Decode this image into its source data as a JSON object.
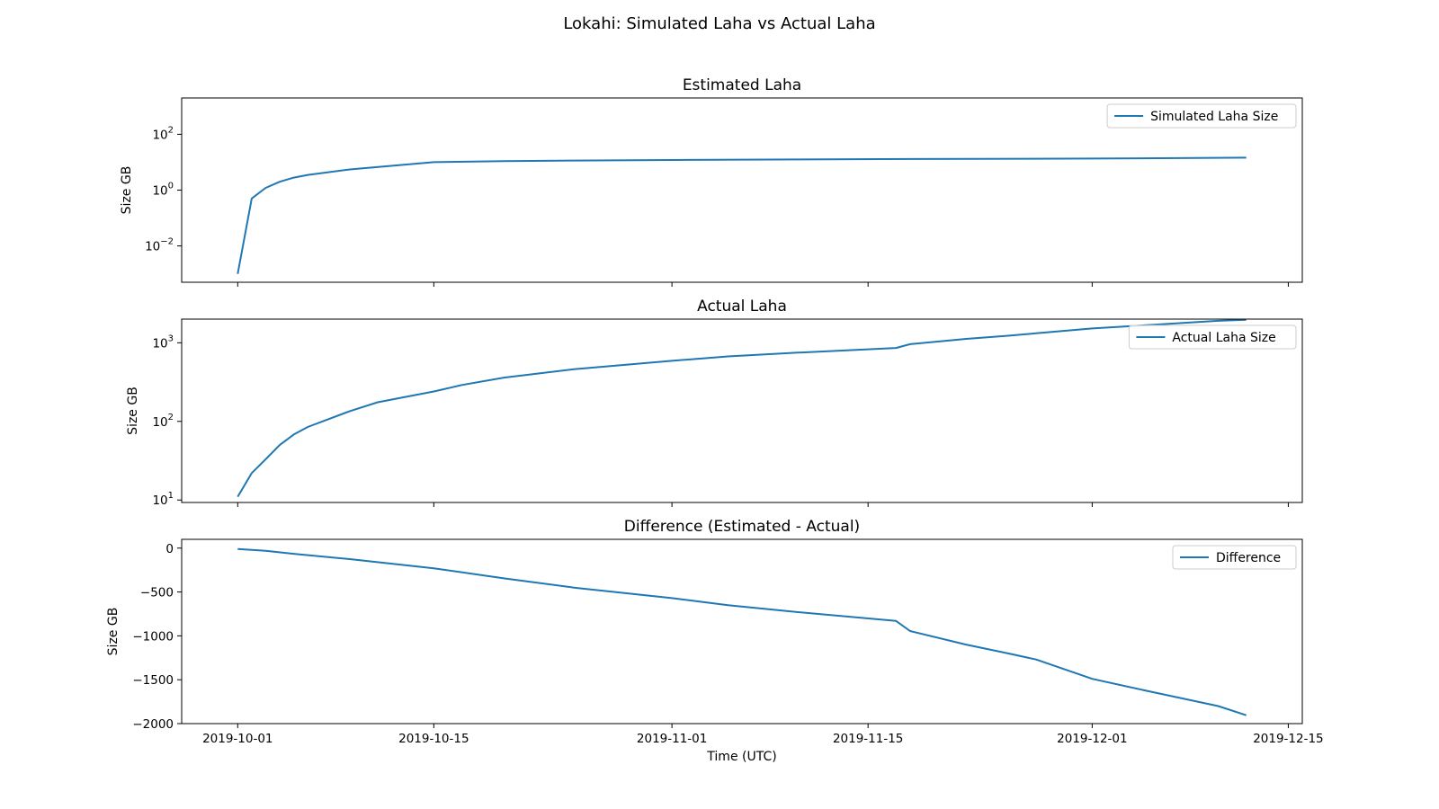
{
  "figure": {
    "suptitle": "Lokahi: Simulated Laha vs Actual Laha",
    "xlabel": "Time (UTC)",
    "x_ticks": [
      "2019-10-01",
      "2019-10-15",
      "2019-11-01",
      "2019-11-15",
      "2019-12-01",
      "2019-12-15"
    ],
    "line_color": "#1f77b4"
  },
  "chart_data": [
    {
      "type": "line",
      "title": "Estimated Laha",
      "ylabel": "Size GB",
      "yscale": "log",
      "ylim": [
        0.0005,
        2000
      ],
      "xlim": [
        "2019-09-27",
        "2019-12-16"
      ],
      "y_ticks": [
        {
          "value": 0.01,
          "base": "10",
          "exp": "−2"
        },
        {
          "value": 1,
          "base": "10",
          "exp": "0"
        },
        {
          "value": 100,
          "base": "10",
          "exp": "2"
        }
      ],
      "legend_position": "upper right",
      "series": [
        {
          "name": "Simulated Laha Size",
          "x": [
            "2019-10-01",
            "2019-10-02",
            "2019-10-03",
            "2019-10-04",
            "2019-10-05",
            "2019-10-06",
            "2019-10-09",
            "2019-10-15",
            "2019-10-20",
            "2019-10-25",
            "2019-11-01",
            "2019-11-10",
            "2019-11-18",
            "2019-12-01",
            "2019-12-12"
          ],
          "y": [
            0.001,
            0.5,
            1.2,
            2.0,
            2.8,
            3.5,
            5.5,
            10,
            11,
            11.5,
            12,
            12.5,
            13,
            13.5,
            14.5
          ]
        }
      ]
    },
    {
      "type": "line",
      "title": "Actual Laha",
      "ylabel": "Size GB",
      "yscale": "log",
      "ylim": [
        9.3,
        2000
      ],
      "xlim": [
        "2019-09-27",
        "2019-12-16"
      ],
      "y_ticks": [
        {
          "value": 10,
          "base": "10",
          "exp": "1"
        },
        {
          "value": 100,
          "base": "10",
          "exp": "2"
        },
        {
          "value": 1000,
          "base": "10",
          "exp": "3"
        }
      ],
      "legend_position": "upper right",
      "series": [
        {
          "name": "Actual Laha Size",
          "x": [
            "2019-10-01",
            "2019-10-02",
            "2019-10-03",
            "2019-10-04",
            "2019-10-05",
            "2019-10-06",
            "2019-10-09",
            "2019-10-11",
            "2019-10-15",
            "2019-10-17",
            "2019-10-20",
            "2019-10-25",
            "2019-11-01",
            "2019-11-05",
            "2019-11-10",
            "2019-11-17",
            "2019-11-18",
            "2019-11-22",
            "2019-11-25",
            "2019-11-27",
            "2019-12-01",
            "2019-12-05",
            "2019-12-10",
            "2019-12-12"
          ],
          "y": [
            11,
            22,
            33,
            50,
            68,
            85,
            135,
            175,
            240,
            290,
            360,
            460,
            590,
            670,
            750,
            860,
            960,
            1120,
            1230,
            1320,
            1520,
            1680,
            1900,
            1960
          ]
        }
      ]
    },
    {
      "type": "line",
      "title": "Difference (Estimated - Actual)",
      "ylabel": "Size GB",
      "yscale": "linear",
      "ylim": [
        -2000,
        100
      ],
      "xlim": [
        "2019-09-27",
        "2019-12-16"
      ],
      "y_ticks": [
        {
          "value": 0,
          "label": "0"
        },
        {
          "value": -500,
          "label": "−500"
        },
        {
          "value": -1000,
          "label": "−1000"
        },
        {
          "value": -1500,
          "label": "−1500"
        },
        {
          "value": -2000,
          "label": "−2000"
        }
      ],
      "legend_position": "upper right",
      "series": [
        {
          "name": "Difference",
          "x": [
            "2019-10-01",
            "2019-10-03",
            "2019-10-05",
            "2019-10-09",
            "2019-10-15",
            "2019-10-20",
            "2019-10-25",
            "2019-11-01",
            "2019-11-05",
            "2019-11-10",
            "2019-11-17",
            "2019-11-18",
            "2019-11-22",
            "2019-11-25",
            "2019-11-27",
            "2019-12-01",
            "2019-12-05",
            "2019-12-10",
            "2019-12-12"
          ],
          "y": [
            -10,
            -30,
            -65,
            -125,
            -230,
            -345,
            -450,
            -570,
            -650,
            -730,
            -830,
            -945,
            -1100,
            -1200,
            -1270,
            -1490,
            -1630,
            -1800,
            -1905
          ]
        }
      ]
    }
  ]
}
